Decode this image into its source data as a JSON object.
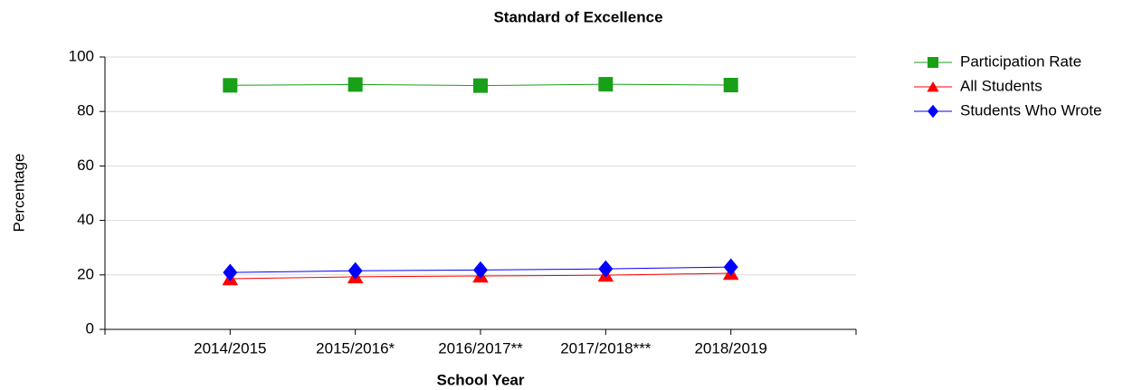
{
  "chart_data": {
    "type": "line",
    "title": "Standard of Excellence",
    "xlabel": "School Year",
    "ylabel": "Percentage",
    "categories": [
      "2014/2015",
      "2015/2016*",
      "2016/2017**",
      "2017/2018***",
      "2018/2019"
    ],
    "series": [
      {
        "name": "Participation Rate",
        "color": "#18a018",
        "marker": "square",
        "values": [
          89.6,
          89.9,
          89.5,
          90.0,
          89.7
        ]
      },
      {
        "name": "All Students",
        "color": "#ff0000",
        "marker": "triangle",
        "values": [
          18.6,
          19.3,
          19.6,
          19.9,
          20.6
        ]
      },
      {
        "name": "Students Who Wrote",
        "color": "#0000ff",
        "marker": "diamond",
        "values": [
          20.9,
          21.5,
          21.8,
          22.2,
          22.9
        ]
      }
    ],
    "ylim": [
      0,
      100
    ],
    "yticks": [
      0,
      20,
      40,
      60,
      80,
      100
    ],
    "grid": true,
    "legend": "top-right"
  }
}
